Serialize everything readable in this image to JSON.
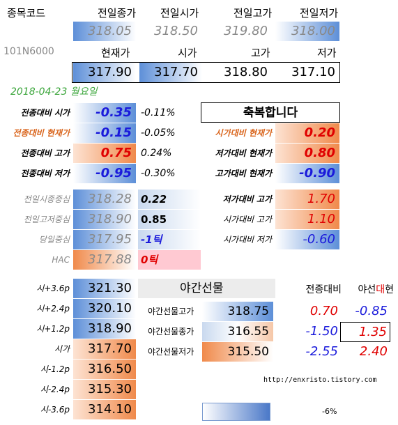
{
  "header": {
    "code_label": "종목코드",
    "code": "101N6000",
    "date": "2018-04-23 월요일"
  },
  "prev": {
    "labels": [
      "전일종가",
      "전일시가",
      "전일고가",
      "전일저가"
    ],
    "values": [
      "318.05",
      "318.50",
      "319.80",
      "318.00"
    ]
  },
  "current": {
    "labels": [
      "현재가",
      "시가",
      "고가",
      "저가"
    ],
    "values": [
      "317.90",
      "317.70",
      "318.80",
      "317.10"
    ]
  },
  "vs_prev": {
    "rows": [
      [
        "전종대비 시가",
        "-0.35",
        "-0.11%"
      ],
      [
        "전종대비 현재가",
        "-0.15",
        "-0.05%"
      ],
      [
        "전종대비 고가",
        "0.75",
        "0.24%"
      ],
      [
        "전종대비 저가",
        "-0.95",
        "-0.30%"
      ]
    ]
  },
  "greeting": "축복합니다",
  "vs_open": {
    "rows": [
      [
        "시가대비 현재가",
        "0.20"
      ],
      [
        "저가대비 현재가",
        "0.80"
      ],
      [
        "고가대비 현재가",
        "-0.90"
      ]
    ]
  },
  "centers": {
    "rows": [
      [
        "전일시종중심",
        "318.28",
        "0.22"
      ],
      [
        "전일고저중심",
        "318.90",
        "0.85"
      ],
      [
        "당일중심",
        "317.95",
        "-1틱"
      ],
      [
        "HAC",
        "317.88",
        "0틱"
      ]
    ]
  },
  "ranges": {
    "rows": [
      [
        "저가대비 고가",
        "1.70"
      ],
      [
        "시가대비 고가",
        "1.10"
      ],
      [
        "시가대비 저가",
        "-0.60"
      ]
    ]
  },
  "levels": {
    "rows": [
      [
        "시+3.6p",
        "321.30"
      ],
      [
        "시+2.4p",
        "320.10"
      ],
      [
        "시+1.2p",
        "318.90"
      ],
      [
        "시가",
        "317.70"
      ],
      [
        "시-1.2p",
        "316.50"
      ],
      [
        "시-2.4p",
        "315.30"
      ],
      [
        "시-3.6p",
        "314.10"
      ]
    ]
  },
  "night": {
    "title": "야간선물",
    "col_labels": [
      "전종대비",
      [
        "야선",
        "대",
        "현"
      ]
    ],
    "rows": [
      [
        "야간선물고가",
        "318.75",
        "0.70",
        "-0.85"
      ],
      [
        "야간선물종가",
        "316.55",
        "-1.50",
        "1.35"
      ],
      [
        "야간선물저가",
        "315.50",
        "-2.55",
        "2.40"
      ]
    ]
  },
  "url": "http://enxristo.tistory.com",
  "legend": "-6%"
}
